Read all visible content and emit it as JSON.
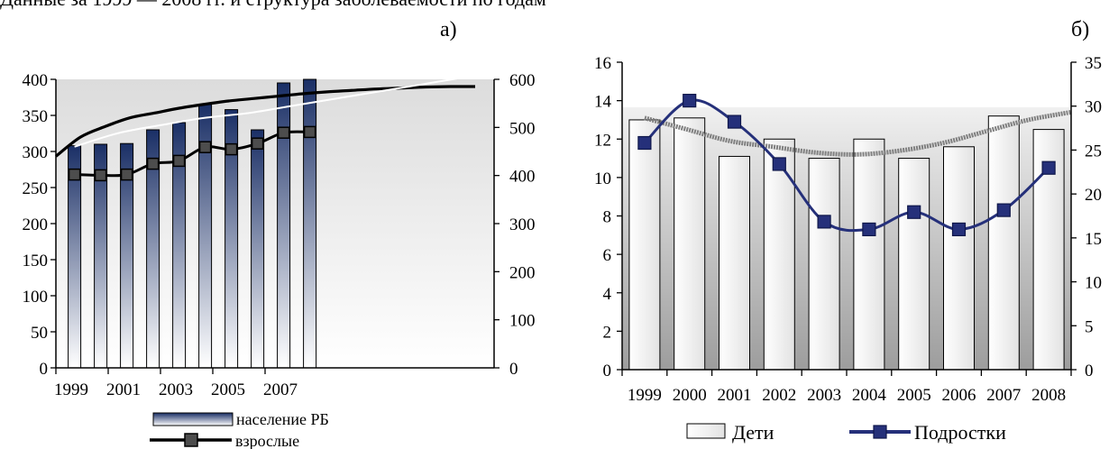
{
  "top_text": "Данные за 1999 — 2008 гг. и структура заболеваемости по годам",
  "colors": {
    "bar_dark": "#1a2f66",
    "bar_light": "#ffffff",
    "teen_line": "#25307a",
    "bg_top": "#dcdcdc",
    "bg_bottom": "#ffffff",
    "trend": "#7f7f7f"
  },
  "chart_data": [
    {
      "panel_label": "а)",
      "type": "bar",
      "x": [
        "1999",
        "2000",
        "2001",
        "2002",
        "2003",
        "2004",
        "2005",
        "2006",
        "2007",
        "2008"
      ],
      "tick_labels": [
        "1999",
        "2001",
        "2003",
        "2005",
        "2007"
      ],
      "tick_years": [
        1999,
        2001,
        2003,
        2005,
        2007
      ],
      "yleft_ticks": [
        "0",
        "50",
        "100",
        "150",
        "200",
        "250",
        "300",
        "350",
        "400"
      ],
      "yright_ticks": [
        "0",
        "100",
        "200",
        "300",
        "400",
        "500",
        "600"
      ],
      "ylim_left": [
        0,
        400
      ],
      "ylim_right": [
        0,
        600
      ],
      "series": [
        {
          "name": "население РБ",
          "type": "bar",
          "axis": "left",
          "values": [
            308,
            310,
            311,
            330,
            340,
            365,
            358,
            330,
            395,
            400
          ]
        },
        {
          "name": "взрослые",
          "type": "line",
          "axis": "left",
          "marker": "square",
          "values": [
            268,
            267,
            268,
            283,
            287,
            306,
            303,
            311,
            326,
            327
          ]
        }
      ],
      "trend": {
        "axis": "right",
        "x_end": 2017,
        "values": [
          440,
          480,
          502,
          520,
          530,
          540,
          548,
          555,
          560,
          565,
          570,
          574,
          577,
          580,
          582,
          584,
          585,
          585
        ]
      },
      "ext_line": {
        "axis": "right",
        "x_end": 2014,
        "values": [
          460,
          488,
          505,
          520,
          530,
          545,
          560,
          575,
          590,
          605
        ]
      },
      "legend": {
        "position": "bottom",
        "bar_label": "население РБ",
        "line_label": "взрослые"
      }
    },
    {
      "panel_label": "б)",
      "type": "bar",
      "x": [
        "1999",
        "2000",
        "2001",
        "2002",
        "2003",
        "2004",
        "2005",
        "2006",
        "2007",
        "2008"
      ],
      "yleft_ticks": [
        "0",
        "2",
        "4",
        "6",
        "8",
        "10",
        "12",
        "14",
        "16"
      ],
      "yright_ticks": [
        "0",
        "5",
        "10",
        "15",
        "20",
        "25",
        "30",
        "35"
      ],
      "ylim_left": [
        0,
        16
      ],
      "ylim_right": [
        0,
        35
      ],
      "series": [
        {
          "name": "Дети",
          "type": "bar",
          "axis": "left",
          "values": [
            13.0,
            13.1,
            11.1,
            12.0,
            11.0,
            12.0,
            11.0,
            11.6,
            13.2,
            12.5
          ]
        },
        {
          "name": "Подростки",
          "type": "line",
          "axis": "left",
          "marker": "square",
          "values": [
            11.8,
            14.0,
            12.9,
            10.7,
            7.7,
            7.3,
            8.2,
            7.3,
            8.3,
            10.5
          ]
        }
      ],
      "trend": {
        "axis": "left",
        "values": [
          13.1,
          12.5,
          11.9,
          11.6,
          11.3,
          11.2,
          11.4,
          11.8,
          12.4,
          13.0,
          13.4
        ]
      },
      "legend": {
        "position": "bottom",
        "bar_label": "Дети",
        "line_label": "Подростки"
      }
    }
  ]
}
